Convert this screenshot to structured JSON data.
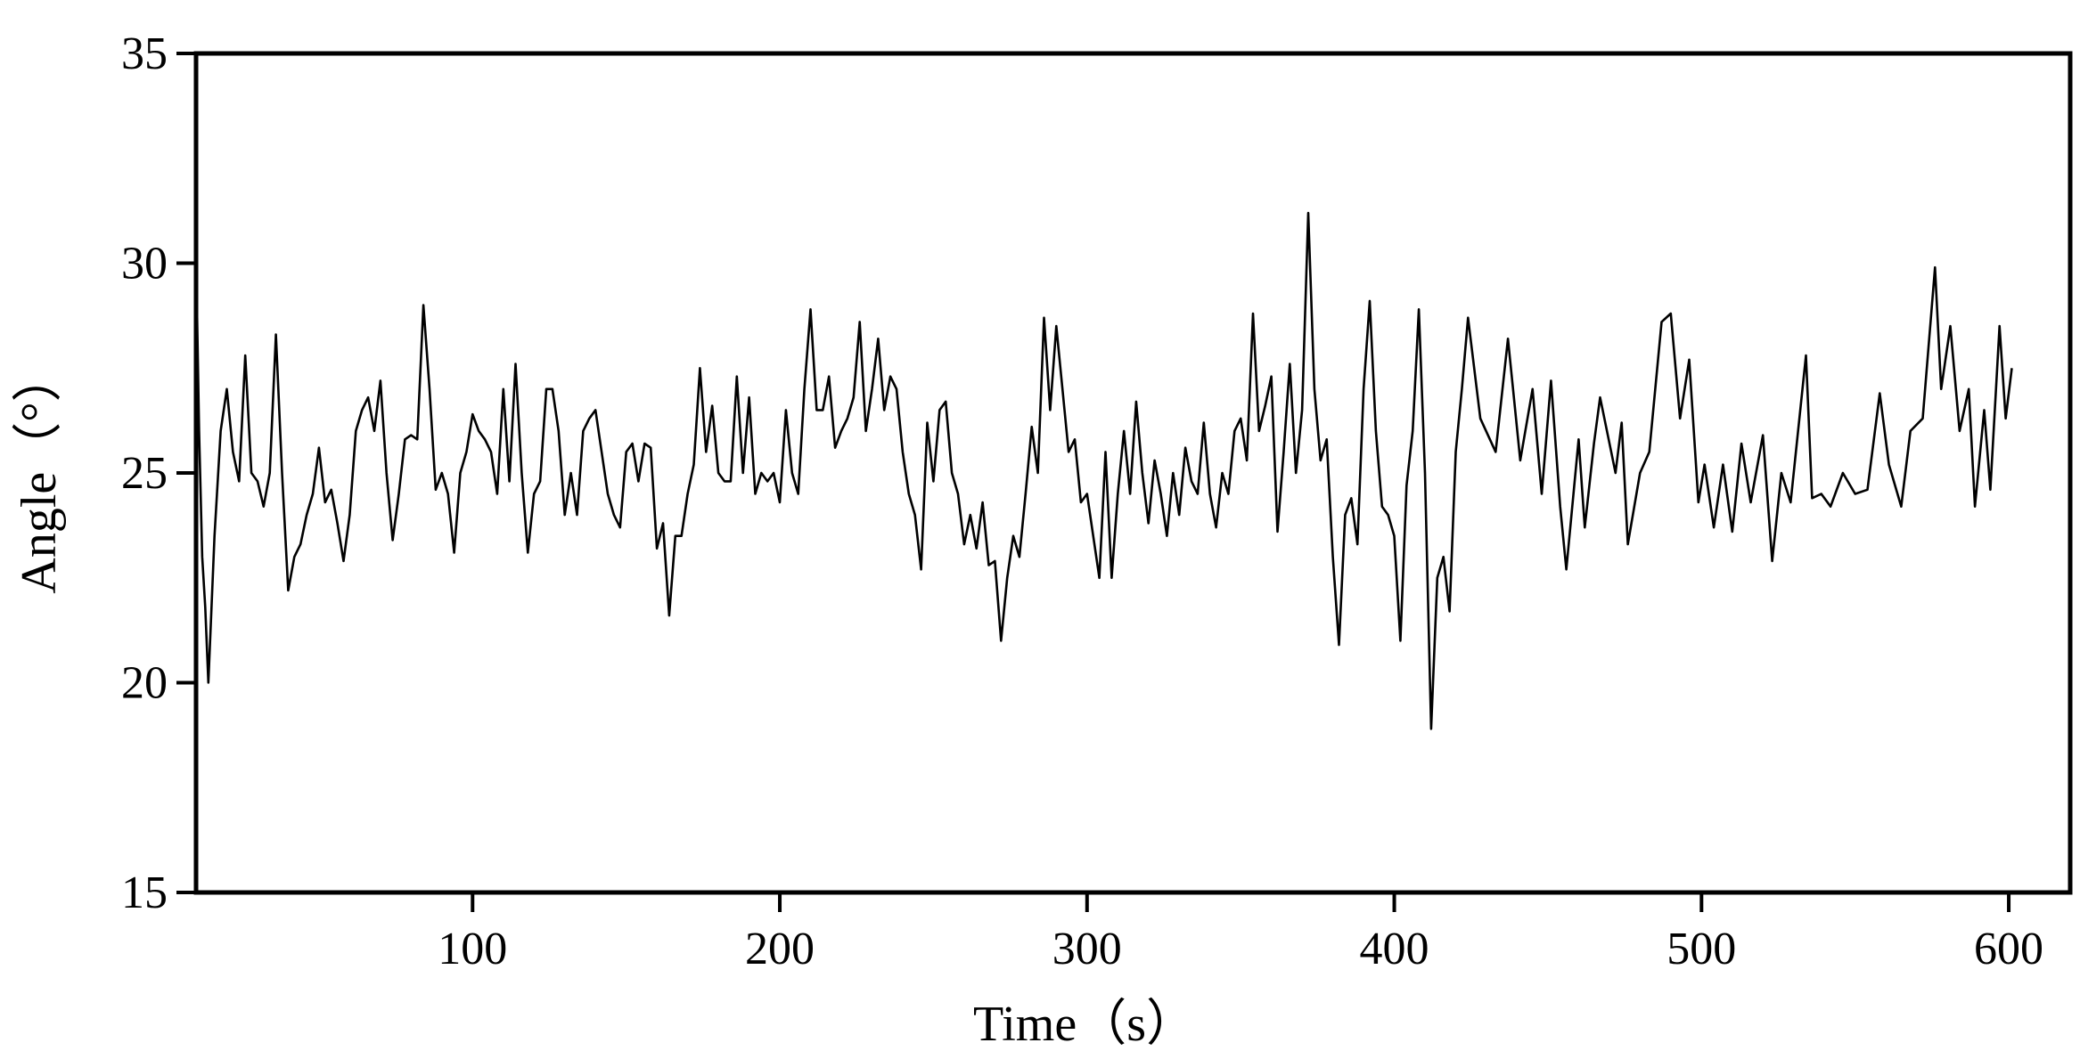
{
  "chart_data": {
    "type": "line",
    "x_label": "Time（s）",
    "y_label": "Angle（°）",
    "xlim": [
      10,
      620
    ],
    "ylim": [
      15,
      35
    ],
    "xticks": [
      100,
      200,
      300,
      400,
      500,
      600
    ],
    "yticks": [
      15,
      20,
      25,
      30,
      35
    ],
    "grid": false,
    "series": [
      {
        "color": "#000000",
        "x": [
          10,
          11,
          12,
          13,
          14,
          16,
          18,
          20,
          22,
          24,
          26,
          28,
          30,
          32,
          34,
          36,
          38,
          40,
          42,
          44,
          46,
          48,
          50,
          52,
          54,
          56,
          58,
          60,
          62,
          64,
          66,
          68,
          70,
          72,
          74,
          76,
          78,
          80,
          82,
          84,
          86,
          88,
          90,
          92,
          94,
          96,
          98,
          100,
          102,
          104,
          106,
          108,
          110,
          112,
          114,
          116,
          118,
          120,
          122,
          124,
          126,
          128,
          130,
          132,
          134,
          136,
          138,
          140,
          142,
          144,
          146,
          148,
          150,
          152,
          154,
          156,
          158,
          160,
          162,
          164,
          166,
          168,
          170,
          172,
          174,
          176,
          178,
          180,
          182,
          184,
          186,
          188,
          190,
          192,
          194,
          196,
          198,
          200,
          202,
          204,
          206,
          208,
          210,
          212,
          214,
          216,
          218,
          220,
          222,
          224,
          226,
          228,
          230,
          232,
          234,
          236,
          238,
          240,
          242,
          244,
          246,
          248,
          250,
          252,
          254,
          256,
          258,
          260,
          262,
          264,
          266,
          268,
          270,
          272,
          274,
          276,
          278,
          280,
          282,
          284,
          286,
          288,
          290,
          292,
          294,
          296,
          298,
          300,
          302,
          304,
          306,
          308,
          310,
          312,
          314,
          316,
          318,
          320,
          322,
          324,
          326,
          328,
          330,
          332,
          334,
          336,
          338,
          340,
          342,
          344,
          346,
          348,
          350,
          352,
          354,
          356,
          358,
          360,
          362,
          364,
          366,
          368,
          370,
          372,
          374,
          376,
          378,
          380,
          382,
          384,
          386,
          388,
          390,
          392,
          394,
          396,
          398,
          400,
          402,
          404,
          406,
          408,
          410,
          412,
          414,
          416,
          418,
          420,
          422,
          424,
          428,
          433,
          437,
          441,
          445,
          448,
          451,
          454,
          456,
          460,
          462,
          465,
          467,
          472,
          474,
          476,
          480,
          483,
          487,
          490,
          493,
          496,
          499,
          501,
          504,
          507,
          510,
          513,
          516,
          520,
          523,
          526,
          529,
          534,
          536,
          539,
          542,
          546,
          550,
          554,
          558,
          561,
          565,
          568,
          572,
          576,
          578,
          581,
          584,
          587,
          589,
          592,
          594,
          597,
          599,
          601
        ],
        "values": [
          30.2,
          26,
          23,
          21.8,
          20,
          23.5,
          26,
          27,
          25.5,
          24.8,
          27.8,
          25,
          24.8,
          24.2,
          25,
          28.3,
          25,
          22.2,
          23,
          23.3,
          24,
          24.5,
          25.6,
          24.3,
          24.6,
          23.8,
          22.9,
          24,
          26,
          26.5,
          26.8,
          26,
          27.2,
          25,
          23.4,
          24.5,
          25.8,
          25.9,
          25.8,
          29,
          27,
          24.6,
          25,
          24.5,
          23.1,
          25,
          25.5,
          26.4,
          26,
          25.8,
          25.5,
          24.5,
          27,
          24.8,
          27.6,
          25,
          23.1,
          24.5,
          24.8,
          27,
          27,
          26,
          24,
          25,
          24,
          26,
          26.3,
          26.5,
          25.5,
          24.5,
          24,
          23.7,
          25.5,
          25.7,
          24.8,
          25.7,
          25.6,
          23.2,
          23.8,
          21.6,
          23.5,
          23.5,
          24.5,
          25.2,
          27.5,
          25.5,
          26.6,
          25,
          24.8,
          24.8,
          27.3,
          25,
          26.8,
          24.5,
          25,
          24.8,
          25,
          24.3,
          26.5,
          25,
          24.5,
          27,
          28.9,
          26.5,
          26.5,
          27.3,
          25.6,
          26,
          26.3,
          26.8,
          28.6,
          26,
          27,
          28.2,
          26.5,
          27.3,
          27,
          25.5,
          24.5,
          24,
          22.7,
          26.2,
          24.8,
          26.5,
          26.7,
          25,
          24.5,
          23.3,
          24,
          23.2,
          24.3,
          22.8,
          22.9,
          21,
          22.5,
          23.5,
          23,
          24.5,
          26.1,
          25,
          28.7,
          26.5,
          28.5,
          27,
          25.5,
          25.8,
          24.3,
          24.5,
          23.5,
          22.5,
          25.5,
          22.5,
          24.5,
          26,
          24.5,
          26.7,
          25,
          23.8,
          25.3,
          24.5,
          23.5,
          25,
          24,
          25.6,
          24.8,
          24.5,
          26.2,
          24.5,
          23.7,
          25,
          24.5,
          26,
          26.3,
          25.3,
          28.8,
          26,
          26.6,
          27.3,
          23.6,
          25.5,
          27.6,
          25,
          26.5,
          31.2,
          27,
          25.3,
          25.8,
          23,
          20.9,
          24,
          24.4,
          23.3,
          27,
          29.1,
          26,
          24.2,
          24,
          23.5,
          21,
          24.7,
          26,
          28.9,
          25,
          18.9,
          22.5,
          23,
          21.7,
          25.5,
          27,
          28.7,
          26.3,
          25.5,
          28.2,
          25.3,
          27,
          24.5,
          27.2,
          24.2,
          22.7,
          25.8,
          23.7,
          25.7,
          26.8,
          25,
          26.2,
          23.3,
          25,
          25.5,
          28.6,
          28.8,
          26.3,
          27.7,
          24.3,
          25.2,
          23.7,
          25.2,
          23.6,
          25.7,
          24.3,
          25.9,
          22.9,
          25,
          24.3,
          27.8,
          24.4,
          24.5,
          24.2,
          25,
          24.5,
          24.6,
          26.9,
          25.2,
          24.2,
          26,
          26.3,
          29.9,
          27,
          28.5,
          26,
          27,
          24.2,
          26.5,
          24.6,
          28.5,
          26.3,
          27.5
        ]
      }
    ]
  }
}
